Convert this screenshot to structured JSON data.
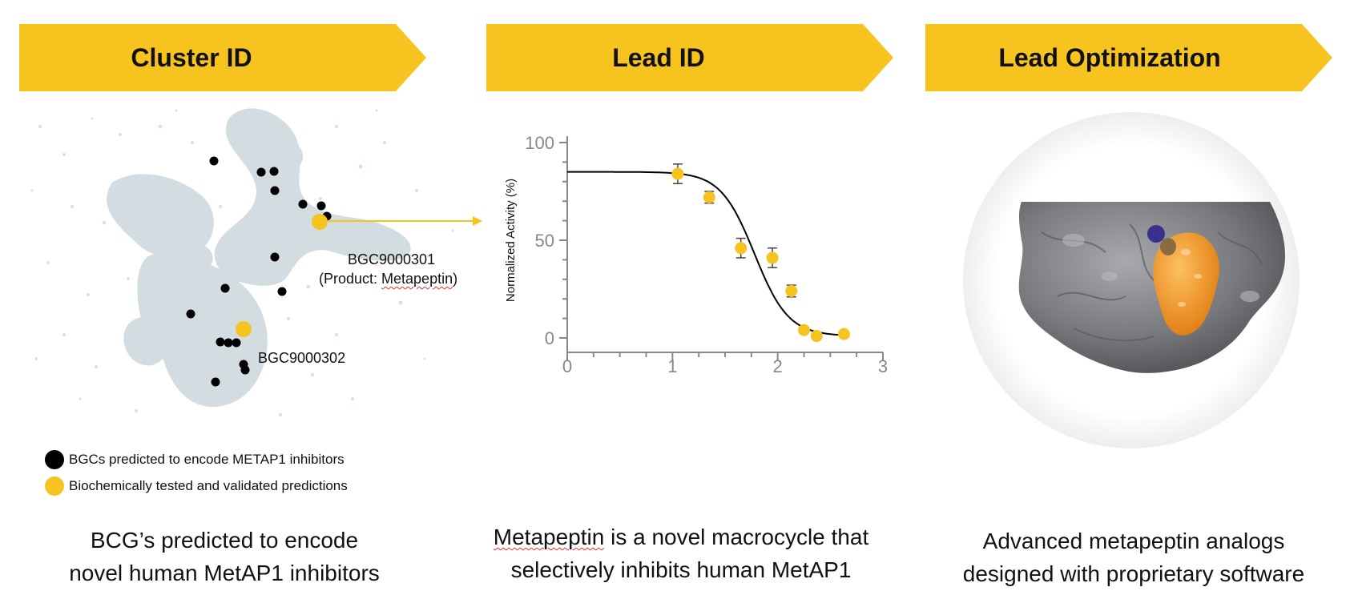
{
  "stages": [
    {
      "label": "Cluster ID"
    },
    {
      "label": "Lead ID"
    },
    {
      "label": "Lead Optimization"
    }
  ],
  "colors": {
    "banner": "#F7C41F",
    "marker_gold": "#F7C41F",
    "marker_black": "#000000",
    "cloud": "#D3DCE0",
    "protein_gray": "#7A7B7E",
    "ligand_orange": "#F0901E",
    "ligand_blue": "#3A2F8C"
  },
  "cluster": {
    "annotation_1_id": "BGC9000301",
    "annotation_1_product_prefix": "(Product: ",
    "annotation_1_product_name": "Metapeptin",
    "annotation_1_product_suffix": ")",
    "annotation_2_id": "BGC9000302",
    "legend": [
      {
        "label": "BGCs predicted to encode METAP1 inhibitors",
        "color": "#000000"
      },
      {
        "label": "Biochemically tested and validated predictions",
        "color": "#F7C41F"
      }
    ]
  },
  "chart_data": {
    "type": "scatter",
    "title": "",
    "xlabel": "",
    "ylabel": "Normalized Activity (%)",
    "xlim": [
      0,
      3
    ],
    "ylim": [
      0,
      100
    ],
    "x_ticks": [
      0,
      1,
      2,
      3
    ],
    "y_ticks": [
      0,
      50,
      100
    ],
    "points": [
      {
        "x": 1.05,
        "y": 84,
        "err": 5
      },
      {
        "x": 1.35,
        "y": 72,
        "err": 3
      },
      {
        "x": 1.65,
        "y": 46,
        "err": 5
      },
      {
        "x": 1.95,
        "y": 41,
        "err": 5
      },
      {
        "x": 2.13,
        "y": 24,
        "err": 3
      },
      {
        "x": 2.25,
        "y": 4,
        "err": 0
      },
      {
        "x": 2.37,
        "y": 1,
        "err": 0
      },
      {
        "x": 2.63,
        "y": 2,
        "err": 0
      }
    ],
    "fit_curve": {
      "top": 85,
      "bottom": 1,
      "midpoint": 1.78,
      "slope": 2.7
    },
    "grid": false
  },
  "captions": {
    "cluster_line1": "BCG’s predicted to encode",
    "cluster_line2": "novel human MetAP1 inhibitors",
    "lead_line1_word": "Metapeptin",
    "lead_line1_rest": " is a novel macrocycle that",
    "lead_line2": "selectively inhibits human MetAP1",
    "opt_line1": "Advanced metapeptin analogs",
    "opt_line2": "designed with proprietary software"
  }
}
